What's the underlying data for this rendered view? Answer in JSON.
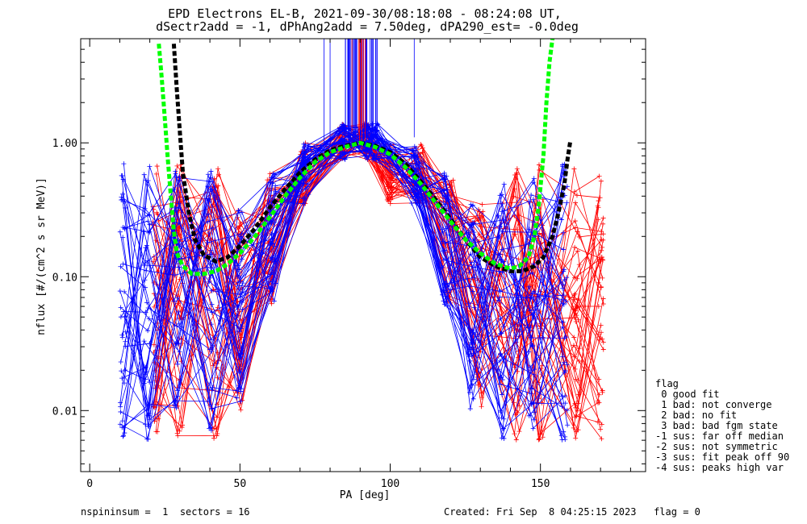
{
  "chart_data": {
    "type": "line",
    "title": "EPD Electrons EL-B, 2021-09-30/08:18:08 - 08:24:08 UT,",
    "subtitle": "dSectr2add = -1, dPhAng2add = 7.50deg, dPA290_est=  -0.0deg",
    "xlabel": "PA [deg]",
    "ylabel": "nflux [#/(cm^2 s sr MeV)]",
    "xlim": [
      -3,
      185
    ],
    "ylim": [
      0.0035,
      6.0
    ],
    "yscale": "log",
    "x_ticks": [
      "0",
      "50",
      "100",
      "150"
    ],
    "x_tick_values": [
      0,
      50,
      100,
      150
    ],
    "y_ticks": [
      "0.01",
      "0.10",
      "1.00"
    ],
    "y_tick_values": [
      0.01,
      0.1,
      1.0
    ],
    "colors": {
      "blue_series": "#0000ff",
      "red_series": "#ff0000",
      "fit_black": "#000000",
      "fit_green": "#00ff00"
    },
    "fit_curves": [
      {
        "color": "black",
        "x": [
          28,
          29,
          30,
          31,
          33,
          35,
          38,
          42,
          46,
          50,
          55,
          60,
          65,
          70,
          75,
          80,
          85,
          90,
          95,
          100,
          105,
          110,
          115,
          120,
          125,
          130,
          135,
          140,
          144,
          148,
          151,
          154,
          156,
          158,
          159,
          160
        ],
        "y": [
          5.5,
          2.5,
          1.2,
          0.6,
          0.3,
          0.19,
          0.145,
          0.13,
          0.14,
          0.17,
          0.23,
          0.33,
          0.45,
          0.6,
          0.75,
          0.88,
          0.95,
          1.0,
          0.95,
          0.85,
          0.7,
          0.52,
          0.38,
          0.27,
          0.19,
          0.14,
          0.12,
          0.11,
          0.11,
          0.12,
          0.14,
          0.2,
          0.3,
          0.5,
          0.75,
          1.05
        ]
      },
      {
        "color": "green",
        "x": [
          23,
          24,
          25,
          26,
          27,
          28,
          29,
          31,
          34,
          38,
          42,
          46,
          50,
          55,
          60,
          65,
          70,
          75,
          80,
          85,
          90,
          95,
          100,
          105,
          110,
          115,
          120,
          125,
          130,
          135,
          140,
          143,
          146,
          148,
          149.5,
          151,
          152,
          153,
          154
        ],
        "y": [
          5.5,
          3.0,
          1.5,
          0.75,
          0.4,
          0.22,
          0.15,
          0.12,
          0.105,
          0.105,
          0.11,
          0.125,
          0.15,
          0.2,
          0.28,
          0.4,
          0.55,
          0.72,
          0.85,
          0.93,
          1.0,
          0.93,
          0.82,
          0.66,
          0.5,
          0.36,
          0.26,
          0.19,
          0.15,
          0.125,
          0.115,
          0.12,
          0.14,
          0.2,
          0.35,
          0.8,
          2.0,
          4.0,
          6.0
        ]
      }
    ]
  },
  "legend": {
    "title": "flag",
    "items": [
      " 0 good fit",
      " 1 bad: not converge",
      " 2 bad: no fit",
      " 3 bad: bad fgm state",
      "-1 sus: far off median",
      "-2 sus: not symmetric",
      "-3 sus: fit peak off 90",
      "-4 sus: peaks high var"
    ]
  },
  "footer": {
    "left": "nspininsum =  1  sectors = 16",
    "right": "Created: Fri Sep  8 04:25:15 2023   flag = 0"
  }
}
